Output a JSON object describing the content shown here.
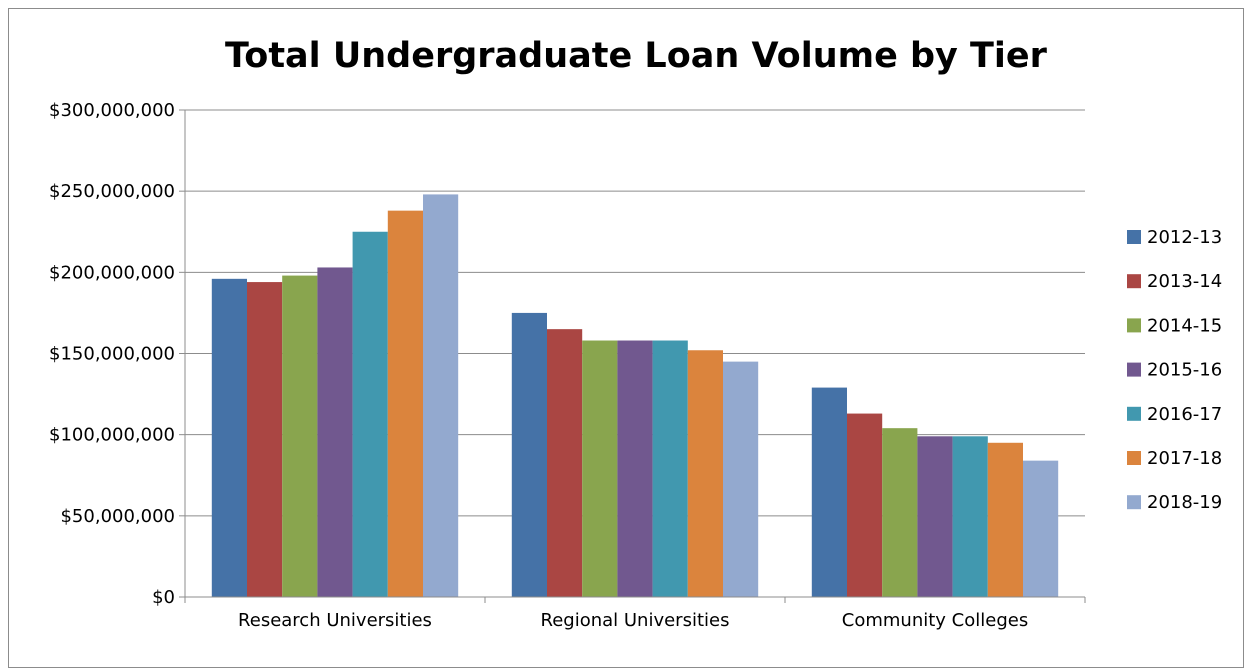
{
  "chart_data": {
    "type": "bar",
    "title": "Total Undergraduate Loan Volume by Tier",
    "xlabel": "",
    "ylabel": "",
    "ylim": [
      0,
      300000000
    ],
    "yticks": [
      0,
      50000000,
      100000000,
      150000000,
      200000000,
      250000000,
      300000000
    ],
    "ytick_labels": [
      "$0",
      "$50,000,000",
      "$100,000,000",
      "$150,000,000",
      "$200,000,000",
      "$250,000,000",
      "$300,000,000"
    ],
    "grid": true,
    "legend_position": "right",
    "categories": [
      "Research Universities",
      "Regional Universities",
      "Community Colleges"
    ],
    "series": [
      {
        "name": "2012-13",
        "color": "#4572A7",
        "values": [
          196000000,
          175000000,
          129000000
        ]
      },
      {
        "name": "2013-14",
        "color": "#AA4643",
        "values": [
          194000000,
          165000000,
          113000000
        ]
      },
      {
        "name": "2014-15",
        "color": "#89A54E",
        "values": [
          198000000,
          158000000,
          104000000
        ]
      },
      {
        "name": "2015-16",
        "color": "#71588F",
        "values": [
          203000000,
          158000000,
          99000000
        ]
      },
      {
        "name": "2016-17",
        "color": "#4198AF",
        "values": [
          225000000,
          158000000,
          99000000
        ]
      },
      {
        "name": "2017-18",
        "color": "#DB843D",
        "values": [
          238000000,
          152000000,
          95000000
        ]
      },
      {
        "name": "2018-19",
        "color": "#93A9CF",
        "values": [
          248000000,
          145000000,
          84000000
        ]
      }
    ]
  }
}
